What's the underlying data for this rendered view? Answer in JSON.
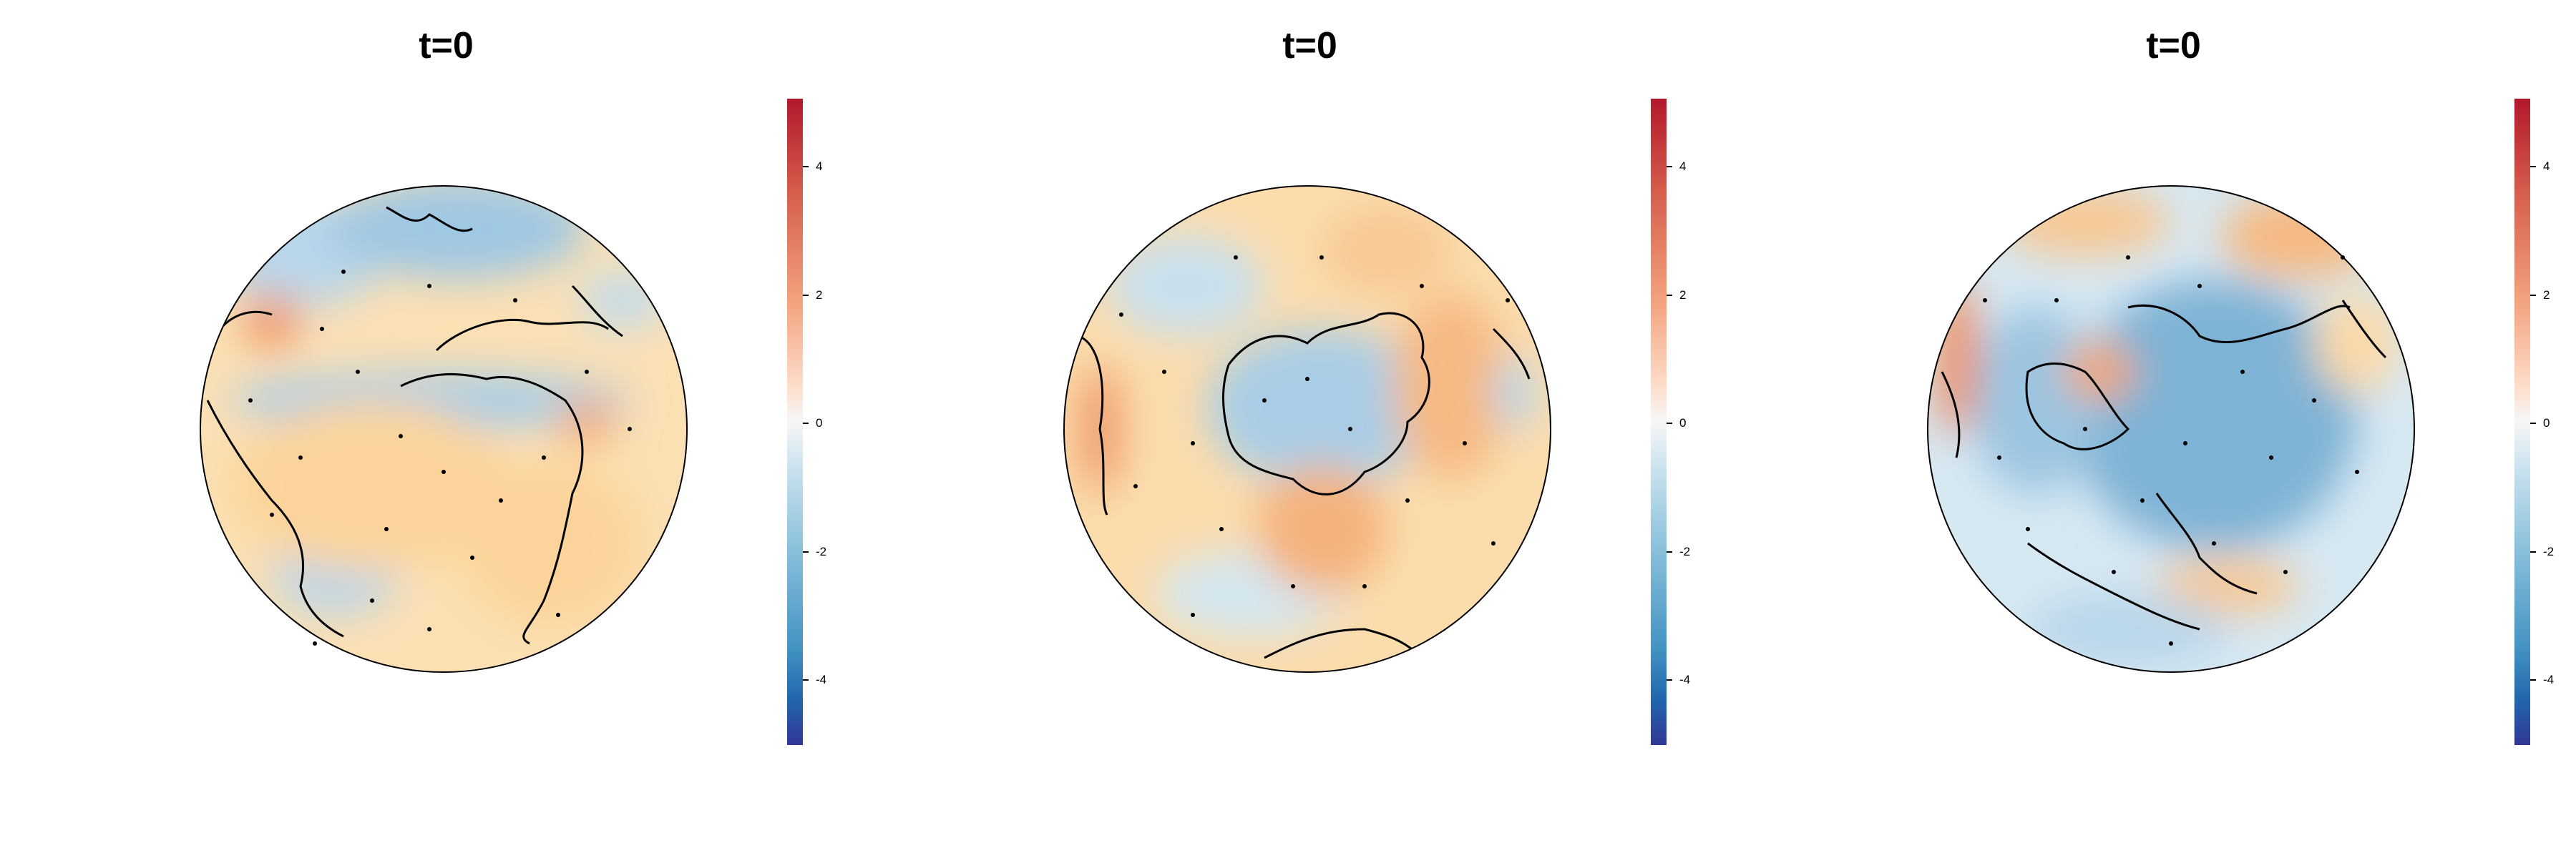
{
  "panels": [
    {
      "title": "t=0",
      "view": "atlantic-europe-africa"
    },
    {
      "title": "t=0",
      "view": "south-pole"
    },
    {
      "title": "t=0",
      "view": "north-pole"
    }
  ],
  "colorbar": {
    "min": -5,
    "max": 5,
    "ticks": [
      "4",
      "2",
      "0",
      "-2",
      "-4"
    ],
    "colors": {
      "high": "#b2182b",
      "mid": "#f7f7f7",
      "low": "#313695"
    }
  }
}
